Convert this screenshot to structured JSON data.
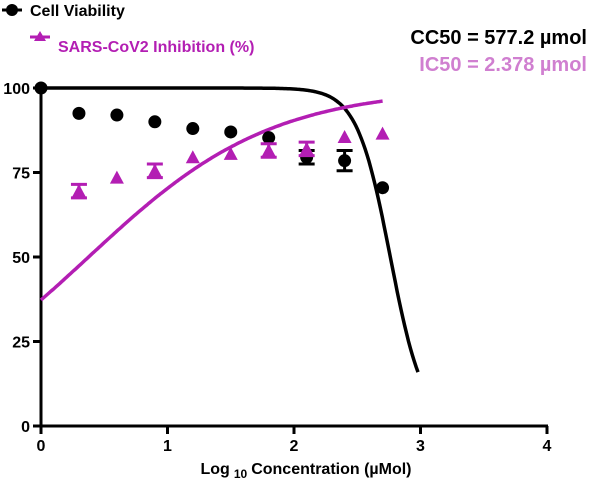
{
  "chart_data": {
    "type": "scatter",
    "xlabel": "Log",
    "xlabel_sub": "10",
    "xlabel_rest": "Concentration (µMol)",
    "ylabel": "",
    "xlim": [
      0,
      4
    ],
    "ylim": [
      0,
      100
    ],
    "x_ticks": [
      "0",
      "1",
      "2",
      "3",
      "4"
    ],
    "y_ticks": [
      "0",
      "25",
      "50",
      "75",
      "100"
    ],
    "legend_placement": "top-left",
    "annotations": [
      {
        "text": "CC50 = 577.2 µmol",
        "color": "#000000"
      },
      {
        "text": "IC50 = 2.378 µmol",
        "color": "#d07fd0"
      }
    ],
    "series": [
      {
        "name": "Cell Viability",
        "color": "#000000",
        "marker": "circle",
        "points": [
          {
            "x": 0.0,
            "y": 100,
            "err": 0
          },
          {
            "x": 0.3,
            "y": 92.5,
            "err": 0
          },
          {
            "x": 0.6,
            "y": 92,
            "err": 0
          },
          {
            "x": 0.9,
            "y": 90,
            "err": 0
          },
          {
            "x": 1.2,
            "y": 88,
            "err": 0
          },
          {
            "x": 1.5,
            "y": 87,
            "err": 0
          },
          {
            "x": 1.8,
            "y": 85.3,
            "err": 0
          },
          {
            "x": 2.1,
            "y": 79.5,
            "err": 2
          },
          {
            "x": 2.4,
            "y": 78.5,
            "err": 3
          },
          {
            "x": 2.7,
            "y": 70.5,
            "err": 0
          }
        ],
        "fit": {
          "type": "sigmoid_decreasing",
          "top": 100,
          "bottom": 0,
          "logEC50": 2.7613,
          "hill": -3.3,
          "x_range": [
            0,
            2.98
          ]
        }
      },
      {
        "name": "SARS-CoV2 Inhibition (%)",
        "color": "#b31eb3",
        "marker": "triangle",
        "points": [
          {
            "x": 0.3,
            "y": 69.5,
            "err": 2
          },
          {
            "x": 0.6,
            "y": 73.5,
            "err": 0
          },
          {
            "x": 0.9,
            "y": 75.5,
            "err": 2
          },
          {
            "x": 1.2,
            "y": 79.5,
            "err": 0
          },
          {
            "x": 1.5,
            "y": 80.5,
            "err": 0
          },
          {
            "x": 1.8,
            "y": 81.5,
            "err": 2
          },
          {
            "x": 2.1,
            "y": 82,
            "err": 2
          },
          {
            "x": 2.4,
            "y": 85.5,
            "err": 0
          },
          {
            "x": 2.7,
            "y": 86.5,
            "err": 0
          }
        ],
        "fit": {
          "type": "sigmoid_increasing",
          "bottom": 0,
          "top": 100,
          "logEC50": 0.3762,
          "hill": 0.6,
          "x_range": [
            0,
            2.7
          ]
        }
      }
    ]
  }
}
